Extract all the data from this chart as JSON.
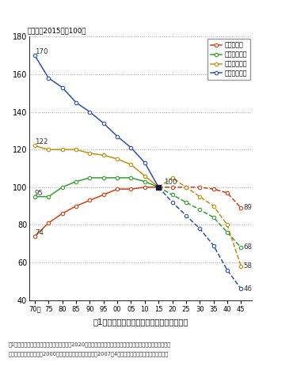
{
  "title_label": "（指数：2015年＝100）",
  "xlabel_title": "図1　農業地域類型別の人口推移と将来予測",
  "note1": "注1）　国勢調査の組替集計による。なお、2020年以降（点線部分）はコーホート分析による推計値である。",
  "note2": "　２）　農業地域類型は2000年時点の市町村を基準とし、2007年4月改定のコードを用いて集計した。",
  "years_solid": [
    1970,
    1975,
    1980,
    1985,
    1990,
    1995,
    2000,
    2005,
    2010,
    2015
  ],
  "years_dashed": [
    2015,
    2020,
    2025,
    2030,
    2035,
    2040,
    2045
  ],
  "urban_solid": [
    74,
    81,
    86,
    90,
    93,
    96,
    99,
    99,
    100,
    100
  ],
  "urban_dashed": [
    100,
    100,
    100,
    100,
    99,
    97,
    89
  ],
  "flatland_solid": [
    95,
    95,
    100,
    103,
    105,
    105,
    105,
    105,
    103,
    100
  ],
  "flatland_dashed": [
    100,
    96,
    92,
    88,
    84,
    76,
    68
  ],
  "middle_solid": [
    122,
    120,
    120,
    120,
    118,
    117,
    115,
    112,
    106,
    100
  ],
  "middle_dashed": [
    100,
    105,
    100,
    95,
    90,
    80,
    58
  ],
  "mountain_solid": [
    170,
    158,
    153,
    145,
    140,
    134,
    127,
    121,
    113,
    100
  ],
  "mountain_dashed": [
    100,
    92,
    85,
    78,
    69,
    56,
    46
  ],
  "colors": {
    "urban": "#d04010",
    "flatland": "#30a030",
    "middle": "#c09010",
    "mountain": "#3050b0"
  },
  "label_urban": "都市的地域",
  "label_flatland": "平地農業地域",
  "label_middle": "中間農業地域",
  "label_mountain": "山間農業地域",
  "ylim": [
    40,
    180
  ],
  "yticks": [
    40,
    60,
    80,
    100,
    120,
    140,
    160,
    180
  ],
  "xtick_labels": [
    "70年",
    "75",
    "80",
    "85",
    "90",
    "95",
    "00",
    "05",
    "10",
    "15",
    "20",
    "25",
    "30",
    "35",
    "40",
    "45"
  ],
  "background_color": "#ffffff"
}
